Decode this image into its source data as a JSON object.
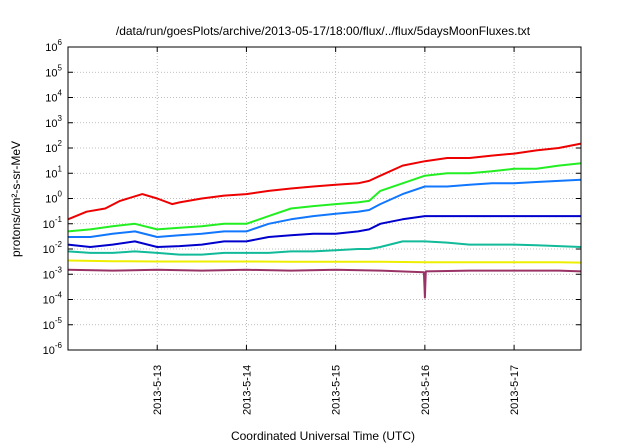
{
  "chart_data": {
    "type": "line",
    "title": "/data/run/goesPlots/archive/2013-05-17/18:00/flux/../flux/5daysMoonFluxes.txt",
    "xlabel": "Coordinated Universal Time (UTC)",
    "ylabel": "protons/cm²-s-sr-MeV",
    "y_scale": "log",
    "xlim": [
      "2013-05-12T00:00",
      "2013-05-17T18:00"
    ],
    "ylim": [
      1e-06,
      1000000.0
    ],
    "x_ticks": [
      "2013-5-13",
      "2013-5-14",
      "2013-5-15",
      "2013-5-16",
      "2013-5-17"
    ],
    "y_ticks": [
      {
        "value": 1e-06,
        "base": "10",
        "exp": "-6"
      },
      {
        "value": 1e-05,
        "base": "10",
        "exp": "-5"
      },
      {
        "value": 0.0001,
        "base": "10",
        "exp": "-4"
      },
      {
        "value": 0.001,
        "base": "10",
        "exp": "-3"
      },
      {
        "value": 0.01,
        "base": "10",
        "exp": "-2"
      },
      {
        "value": 0.1,
        "base": "10",
        "exp": "-1"
      },
      {
        "value": 1,
        "base": "10",
        "exp": "0"
      },
      {
        "value": 10,
        "base": "10",
        "exp": "1"
      },
      {
        "value": 100,
        "base": "10",
        "exp": "2"
      },
      {
        "value": 1000,
        "base": "10",
        "exp": "3"
      },
      {
        "value": 10000,
        "base": "10",
        "exp": "4"
      },
      {
        "value": 100000,
        "base": "10",
        "exp": "5"
      },
      {
        "value": 1000000,
        "base": "10",
        "exp": "6"
      }
    ],
    "grid": true,
    "legend": "none",
    "series": [
      {
        "color": "#ee0000",
        "x": [
          "2013-05-12T00:00",
          "2013-05-12T05:00",
          "2013-05-12T10:00",
          "2013-05-12T14:00",
          "2013-05-12T20:00",
          "2013-05-13T00:00",
          "2013-05-13T04:00",
          "2013-05-13T06:00",
          "2013-05-13T12:00",
          "2013-05-13T18:00",
          "2013-05-14T00:00",
          "2013-05-14T06:00",
          "2013-05-14T12:00",
          "2013-05-14T18:00",
          "2013-05-15T00:00",
          "2013-05-15T06:00",
          "2013-05-15T09:00",
          "2013-05-15T12:00",
          "2013-05-15T18:00",
          "2013-05-16T00:00",
          "2013-05-16T06:00",
          "2013-05-16T12:00",
          "2013-05-16T18:00",
          "2013-05-17T00:00",
          "2013-05-17T06:00",
          "2013-05-17T12:00",
          "2013-05-17T18:00"
        ],
        "y": [
          0.15,
          0.3,
          0.4,
          0.8,
          1.5,
          1.0,
          0.6,
          0.7,
          1.0,
          1.3,
          1.5,
          2.0,
          2.5,
          3.0,
          3.5,
          4.0,
          5.0,
          8.0,
          20,
          30,
          40,
          40,
          50,
          60,
          80,
          100,
          150
        ]
      },
      {
        "color": "#22ee22",
        "x": [
          "2013-05-12T00:00",
          "2013-05-12T06:00",
          "2013-05-12T12:00",
          "2013-05-12T18:00",
          "2013-05-13T00:00",
          "2013-05-13T06:00",
          "2013-05-13T12:00",
          "2013-05-13T18:00",
          "2013-05-14T00:00",
          "2013-05-14T06:00",
          "2013-05-14T12:00",
          "2013-05-14T18:00",
          "2013-05-15T00:00",
          "2013-05-15T06:00",
          "2013-05-15T09:00",
          "2013-05-15T12:00",
          "2013-05-15T18:00",
          "2013-05-16T00:00",
          "2013-05-16T06:00",
          "2013-05-16T12:00",
          "2013-05-16T18:00",
          "2013-05-17T00:00",
          "2013-05-17T06:00",
          "2013-05-17T12:00",
          "2013-05-17T18:00"
        ],
        "y": [
          0.05,
          0.06,
          0.08,
          0.1,
          0.06,
          0.07,
          0.08,
          0.1,
          0.1,
          0.2,
          0.4,
          0.5,
          0.6,
          0.7,
          0.8,
          2.0,
          4.0,
          8.0,
          10,
          10,
          12,
          15,
          15,
          20,
          25
        ]
      },
      {
        "color": "#1177ff",
        "x": [
          "2013-05-12T00:00",
          "2013-05-12T06:00",
          "2013-05-12T12:00",
          "2013-05-12T18:00",
          "2013-05-13T00:00",
          "2013-05-13T06:00",
          "2013-05-13T12:00",
          "2013-05-13T18:00",
          "2013-05-14T00:00",
          "2013-05-14T06:00",
          "2013-05-14T12:00",
          "2013-05-14T18:00",
          "2013-05-15T00:00",
          "2013-05-15T06:00",
          "2013-05-15T09:00",
          "2013-05-15T12:00",
          "2013-05-15T18:00",
          "2013-05-16T00:00",
          "2013-05-16T06:00",
          "2013-05-16T12:00",
          "2013-05-16T18:00",
          "2013-05-17T00:00",
          "2013-05-17T06:00",
          "2013-05-17T12:00",
          "2013-05-17T18:00"
        ],
        "y": [
          0.03,
          0.03,
          0.04,
          0.05,
          0.03,
          0.035,
          0.04,
          0.05,
          0.05,
          0.1,
          0.15,
          0.2,
          0.25,
          0.3,
          0.35,
          0.6,
          1.5,
          3.0,
          3.0,
          3.5,
          4.0,
          4.0,
          4.5,
          5.0,
          5.5
        ]
      },
      {
        "color": "#0000cc",
        "x": [
          "2013-05-12T00:00",
          "2013-05-12T06:00",
          "2013-05-12T12:00",
          "2013-05-12T18:00",
          "2013-05-13T00:00",
          "2013-05-13T06:00",
          "2013-05-13T12:00",
          "2013-05-13T18:00",
          "2013-05-14T00:00",
          "2013-05-14T06:00",
          "2013-05-14T12:00",
          "2013-05-14T18:00",
          "2013-05-15T00:00",
          "2013-05-15T06:00",
          "2013-05-15T09:00",
          "2013-05-15T12:00",
          "2013-05-15T18:00",
          "2013-05-16T00:00",
          "2013-05-16T06:00",
          "2013-05-16T12:00",
          "2013-05-16T18:00",
          "2013-05-17T00:00",
          "2013-05-17T06:00",
          "2013-05-17T12:00",
          "2013-05-17T18:00"
        ],
        "y": [
          0.015,
          0.012,
          0.015,
          0.02,
          0.012,
          0.013,
          0.015,
          0.02,
          0.02,
          0.03,
          0.035,
          0.04,
          0.04,
          0.05,
          0.06,
          0.1,
          0.15,
          0.2,
          0.2,
          0.2,
          0.2,
          0.2,
          0.2,
          0.2,
          0.2
        ]
      },
      {
        "color": "#11bb99",
        "x": [
          "2013-05-12T00:00",
          "2013-05-12T06:00",
          "2013-05-12T12:00",
          "2013-05-12T18:00",
          "2013-05-13T00:00",
          "2013-05-13T06:00",
          "2013-05-13T12:00",
          "2013-05-13T18:00",
          "2013-05-14T00:00",
          "2013-05-14T06:00",
          "2013-05-14T12:00",
          "2013-05-14T18:00",
          "2013-05-15T00:00",
          "2013-05-15T06:00",
          "2013-05-15T09:00",
          "2013-05-15T12:00",
          "2013-05-15T18:00",
          "2013-05-16T00:00",
          "2013-05-16T06:00",
          "2013-05-16T12:00",
          "2013-05-16T18:00",
          "2013-05-17T00:00",
          "2013-05-17T06:00",
          "2013-05-17T12:00",
          "2013-05-17T18:00"
        ],
        "y": [
          0.008,
          0.007,
          0.007,
          0.008,
          0.007,
          0.006,
          0.006,
          0.007,
          0.007,
          0.007,
          0.008,
          0.008,
          0.009,
          0.01,
          0.01,
          0.012,
          0.02,
          0.02,
          0.018,
          0.015,
          0.015,
          0.015,
          0.014,
          0.013,
          0.012
        ]
      },
      {
        "color": "#eeee00",
        "x": [
          "2013-05-12T00:00",
          "2013-05-12T12:00",
          "2013-05-13T00:00",
          "2013-05-13T12:00",
          "2013-05-14T00:00",
          "2013-05-14T12:00",
          "2013-05-15T00:00",
          "2013-05-15T12:00",
          "2013-05-16T00:00",
          "2013-05-16T12:00",
          "2013-05-17T00:00",
          "2013-05-17T12:00",
          "2013-05-17T18:00"
        ],
        "y": [
          0.0035,
          0.0033,
          0.0032,
          0.0032,
          0.0032,
          0.0031,
          0.0031,
          0.0031,
          0.003,
          0.003,
          0.003,
          0.003,
          0.0029
        ]
      },
      {
        "color": "#993366",
        "x": [
          "2013-05-12T00:00",
          "2013-05-12T12:00",
          "2013-05-13T00:00",
          "2013-05-13T12:00",
          "2013-05-14T00:00",
          "2013-05-14T12:00",
          "2013-05-15T00:00",
          "2013-05-15T12:00",
          "2013-05-15T23:45",
          "2013-05-16T00:00",
          "2013-05-16T00:15",
          "2013-05-16T12:00",
          "2013-05-17T00:00",
          "2013-05-17T12:00",
          "2013-05-17T18:00"
        ],
        "y": [
          0.0015,
          0.0014,
          0.0015,
          0.0014,
          0.0015,
          0.0014,
          0.0015,
          0.0014,
          0.0012,
          0.00012,
          0.0013,
          0.0014,
          0.0014,
          0.0014,
          0.0013
        ]
      }
    ]
  }
}
